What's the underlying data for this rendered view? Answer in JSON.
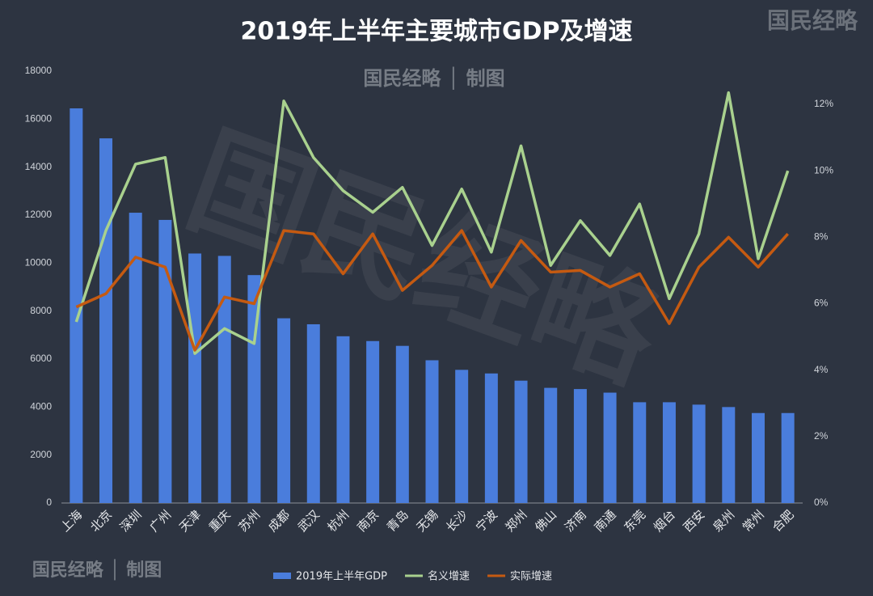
{
  "chart_data": {
    "type": "combo",
    "title": "2019年上半年主要城市GDP及增速",
    "annotations": [
      "国民经略",
      "国民经略 │ 制图"
    ],
    "categories": [
      "上海",
      "北京",
      "深圳",
      "广州",
      "天津",
      "重庆",
      "苏州",
      "成都",
      "武汉",
      "杭州",
      "南京",
      "青岛",
      "无锡",
      "长沙",
      "宁波",
      "郑州",
      "佛山",
      "济南",
      "南通",
      "东莞",
      "烟台",
      "西安",
      "泉州",
      "常州",
      "合肥"
    ],
    "series": [
      {
        "name": "2019年上半年GDP",
        "type": "bar",
        "color": "#4a7ddc",
        "axis": "y",
        "values": [
          16450,
          15200,
          12100,
          11800,
          10400,
          10300,
          9500,
          7700,
          7450,
          6950,
          6750,
          6550,
          5950,
          5550,
          5400,
          5100,
          4800,
          4750,
          4600,
          4200,
          4200,
          4100,
          4000,
          3750,
          3750
        ]
      },
      {
        "name": "名义增速",
        "type": "line",
        "color": "#a9d18e",
        "axis": "y2",
        "values": [
          5.45,
          8.2,
          10.2,
          10.4,
          4.5,
          5.25,
          4.8,
          12.1,
          10.4,
          9.4,
          8.75,
          9.5,
          7.75,
          9.45,
          7.55,
          10.75,
          7.15,
          8.5,
          7.45,
          9.0,
          6.15,
          8.1,
          12.35,
          7.35,
          10.0
        ]
      },
      {
        "name": "实际增速",
        "type": "line",
        "color": "#c55a11",
        "axis": "y2",
        "values": [
          5.9,
          6.3,
          7.4,
          7.1,
          4.6,
          6.2,
          6.0,
          8.2,
          8.1,
          6.9,
          8.1,
          6.4,
          7.15,
          8.2,
          6.5,
          7.9,
          6.95,
          7.0,
          6.5,
          6.9,
          5.4,
          7.1,
          8.0,
          7.1,
          8.1
        ]
      }
    ],
    "ylim": [
      0,
      18000
    ],
    "yticks": [
      0,
      2000,
      4000,
      6000,
      8000,
      10000,
      12000,
      14000,
      16000,
      18000
    ],
    "y2lim": [
      0,
      13
    ],
    "y2ticks": [
      {
        "value": 0,
        "label": "0%"
      },
      {
        "value": 2,
        "label": "2%"
      },
      {
        "value": 4,
        "label": "4%"
      },
      {
        "value": 6,
        "label": "6%"
      },
      {
        "value": 8,
        "label": "8%"
      },
      {
        "value": 10,
        "label": "10%"
      },
      {
        "value": 12,
        "label": "12%"
      }
    ],
    "grid": false,
    "legend": "bottom"
  }
}
